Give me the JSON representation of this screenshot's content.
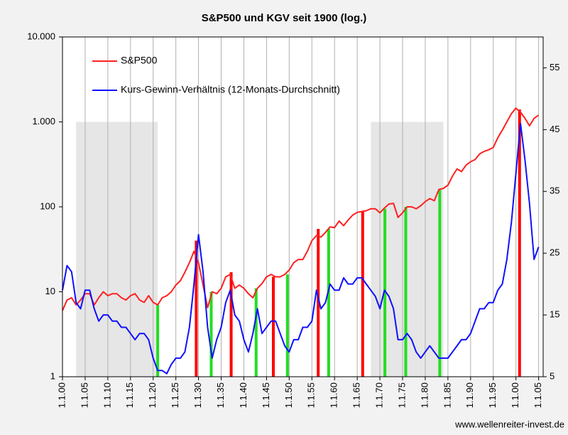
{
  "chart_data": {
    "type": "line",
    "title": "S&P500 und KGV seit 1900 (log.)",
    "source": "www.wellenreiter-invest.de",
    "x": [
      1900,
      1901,
      1902,
      1903,
      1904,
      1905,
      1906,
      1907,
      1908,
      1909,
      1910,
      1911,
      1912,
      1913,
      1914,
      1915,
      1916,
      1917,
      1918,
      1919,
      1920,
      1921,
      1922,
      1923,
      1924,
      1925,
      1926,
      1927,
      1928,
      1929,
      1930,
      1931,
      1932,
      1933,
      1934,
      1935,
      1936,
      1937,
      1938,
      1939,
      1940,
      1941,
      1942,
      1943,
      1944,
      1945,
      1946,
      1947,
      1948,
      1949,
      1950,
      1951,
      1952,
      1953,
      1954,
      1955,
      1956,
      1957,
      1958,
      1959,
      1960,
      1961,
      1962,
      1963,
      1964,
      1965,
      1966,
      1967,
      1968,
      1969,
      1970,
      1971,
      1972,
      1973,
      1974,
      1975,
      1976,
      1977,
      1978,
      1979,
      1980,
      1981,
      1982,
      1983,
      1984,
      1985,
      1986,
      1987,
      1988,
      1989,
      1990,
      1991,
      1992,
      1993,
      1994,
      1995,
      1996,
      1997,
      1998,
      1999,
      2000,
      2001,
      2002,
      2003,
      2004,
      2005
    ],
    "series": [
      {
        "name": "S&P500",
        "color": "#ff2020",
        "axis": "y",
        "values": [
          6,
          8,
          8.5,
          7,
          8,
          9.5,
          9.5,
          7,
          8.5,
          10,
          9,
          9.5,
          9.5,
          8.5,
          8,
          9,
          9.5,
          8,
          7.5,
          9,
          7.5,
          7,
          8.5,
          9,
          10,
          12,
          13.5,
          17,
          22,
          30,
          22,
          12,
          6.5,
          10,
          9.5,
          11,
          15,
          16,
          11,
          12,
          11,
          9.5,
          8.5,
          11,
          12.5,
          15,
          16,
          15,
          15,
          16,
          18,
          22,
          24,
          24,
          30,
          40,
          46,
          44,
          50,
          58,
          57,
          68,
          60,
          70,
          80,
          86,
          88,
          90,
          95,
          95,
          85,
          97,
          108,
          110,
          75,
          85,
          100,
          100,
          95,
          103,
          115,
          125,
          118,
          160,
          165,
          180,
          230,
          280,
          260,
          310,
          340,
          360,
          420,
          450,
          470,
          500,
          650,
          800,
          1000,
          1250,
          1450,
          1300,
          1100,
          900,
          1100,
          1200
        ]
      },
      {
        "name": "Kurs-Gewinn-Verhältnis (12-Monats-Durchschnitt)",
        "color": "#1010ff",
        "axis": "y2",
        "values": [
          19,
          23,
          22,
          17,
          16,
          19,
          19,
          16,
          14,
          15,
          15,
          14,
          14,
          13,
          13,
          12,
          11,
          12,
          12,
          11,
          8,
          6,
          6,
          5.5,
          7,
          8,
          8,
          9,
          13,
          20,
          28,
          22,
          13,
          8,
          11,
          13,
          17,
          19,
          15,
          14,
          11,
          9,
          12,
          16,
          12,
          13,
          14,
          14,
          12,
          10,
          9,
          11,
          11,
          13,
          13,
          14,
          19,
          16,
          17,
          20,
          19,
          19,
          21,
          20,
          20,
          21,
          21,
          20,
          19,
          18,
          16,
          19,
          18,
          16,
          11,
          11,
          12,
          11,
          9,
          8,
          9,
          10,
          9,
          8,
          8,
          8,
          9,
          10,
          11,
          11,
          12,
          14,
          16,
          16,
          17,
          17,
          19,
          20,
          24,
          30,
          38,
          46,
          40,
          33,
          24,
          26
        ]
      }
    ],
    "signal_bars": [
      {
        "color": "#ff0000",
        "x": [
          1929.5,
          1937.2,
          1946.5,
          1956.4,
          1966.2,
          2000.8
        ],
        "values": [
          40,
          17,
          15,
          55,
          90,
          1400
        ]
      },
      {
        "color": "#22dd22",
        "x": [
          1921,
          1932.8,
          1942.7,
          1949.6,
          1958.7,
          1971.1,
          1975.7,
          1983.2
        ],
        "values": [
          7,
          10,
          11,
          16,
          55,
          95,
          100,
          160
        ]
      }
    ],
    "shaded": [
      {
        "x": [
          1903,
          1921
        ],
        "top": 1000
      },
      {
        "x": [
          1968,
          1984
        ],
        "top": 1000
      }
    ],
    "xlim": [
      1900,
      2006
    ],
    "xticks": [
      {
        "value": 1900,
        "label": "1.1.00"
      },
      {
        "value": 1905,
        "label": "1.1.05"
      },
      {
        "value": 1910,
        "label": "1.1.10"
      },
      {
        "value": 1915,
        "label": "1.1.15"
      },
      {
        "value": 1920,
        "label": "1.1.20"
      },
      {
        "value": 1925,
        "label": "1.1.25"
      },
      {
        "value": 1930,
        "label": "1.1.30"
      },
      {
        "value": 1935,
        "label": "1.1.35"
      },
      {
        "value": 1940,
        "label": "1.1.40"
      },
      {
        "value": 1945,
        "label": "1.1.45"
      },
      {
        "value": 1950,
        "label": "1.1.50"
      },
      {
        "value": 1955,
        "label": "1.1.55"
      },
      {
        "value": 1960,
        "label": "1.1.60"
      },
      {
        "value": 1965,
        "label": "1.1.65"
      },
      {
        "value": 1970,
        "label": "1.1.70"
      },
      {
        "value": 1975,
        "label": "1.1.75"
      },
      {
        "value": 1980,
        "label": "1.1.80"
      },
      {
        "value": 1985,
        "label": "1.1.85"
      },
      {
        "value": 1990,
        "label": "1.1.90"
      },
      {
        "value": 1995,
        "label": "1.1.95"
      },
      {
        "value": 2000,
        "label": "1.1.00"
      },
      {
        "value": 2005,
        "label": "1.1.05"
      }
    ],
    "ylim": [
      1,
      10000
    ],
    "yscale": "log",
    "yticks": [
      1,
      10,
      100,
      {
        "value": 1000,
        "label": "1.000"
      },
      {
        "value": 10000,
        "label": "10.000"
      }
    ],
    "y2lim": [
      5,
      60
    ],
    "y2ticks": [
      5,
      15,
      25,
      35,
      45,
      55
    ],
    "grid": "x",
    "legend": "upper left"
  }
}
